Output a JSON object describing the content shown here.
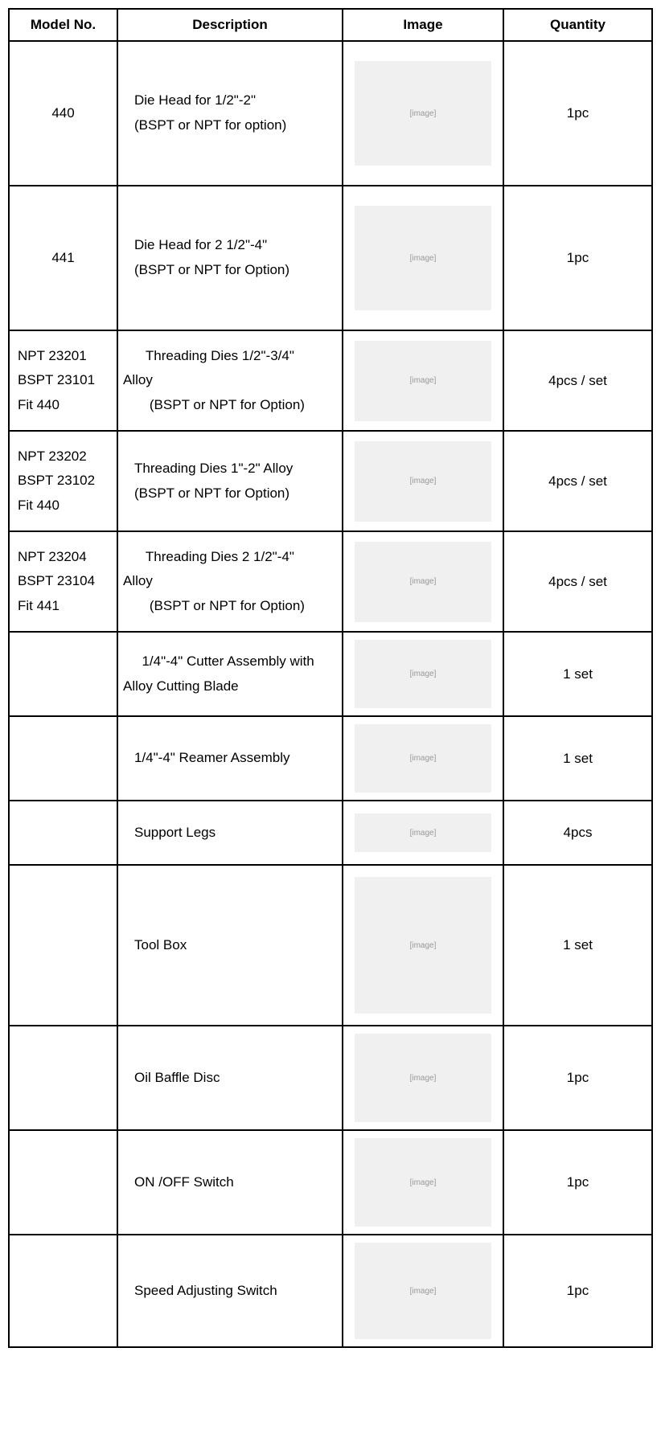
{
  "table": {
    "headers": {
      "model": "Model No.",
      "description": "Description",
      "image": "Image",
      "quantity": "Quantity"
    },
    "rows": [
      {
        "model": "440",
        "model_align": "center",
        "desc_l1": "Die Head for 1/2\"-2\"",
        "desc_l2": "(BSPT or NPT for option)",
        "desc_l3": "",
        "row_class": "row-tall",
        "qty": "1pc"
      },
      {
        "model": "441",
        "model_align": "center",
        "desc_l1": "Die Head for 2 1/2\"-4\"",
        "desc_l2": "(BSPT or NPT for Option)",
        "desc_l3": "",
        "row_class": "row-tall",
        "qty": "1pc"
      },
      {
        "model": "NPT   23201\nBSPT 23101\nFit 440",
        "model_align": "left",
        "desc_l1": "   Threading Dies 1/2\"-3/4\"",
        "desc_l2": "Alloy",
        "desc_l3": "    (BSPT or NPT for Option)",
        "row_class": "row-med",
        "desc_wrap": true,
        "qty": "4pcs / set"
      },
      {
        "model": "NPT   23202\nBSPT 23102\nFit 440",
        "model_align": "left",
        "desc_l1": "Threading Dies 1\"-2\" Alloy",
        "desc_l2": "(BSPT or NPT for Option)",
        "desc_l3": "",
        "row_class": "row-med",
        "qty": "4pcs / set"
      },
      {
        "model": "NPT   23204\nBSPT 23104\nFit 441",
        "model_align": "left",
        "desc_l1": "   Threading Dies 2 1/2\"-4\"",
        "desc_l2": "Alloy",
        "desc_l3": "    (BSPT or NPT for Option)",
        "row_class": "row-med",
        "desc_wrap": true,
        "qty": "4pcs / set"
      },
      {
        "model": "",
        "model_align": "center",
        "desc_l1": "  1/4\"-4\" Cutter Assembly with",
        "desc_l2": "Alloy Cutting Blade",
        "desc_l3": "",
        "row_class": "row-short",
        "desc_wrap": true,
        "qty": "1 set"
      },
      {
        "model": "",
        "model_align": "center",
        "desc_l1": "1/4\"-4\" Reamer Assembly",
        "desc_l2": "",
        "desc_l3": "",
        "row_class": "row-short",
        "qty": "1 set"
      },
      {
        "model": "",
        "model_align": "center",
        "desc_l1": "Support Legs",
        "desc_l2": "",
        "desc_l3": "",
        "row_class": "row-smallest",
        "qty": "4pcs"
      },
      {
        "model": "",
        "model_align": "center",
        "desc_l1": "Tool Box",
        "desc_l2": "",
        "desc_l3": "",
        "row_class": "row-big",
        "qty": "1 set"
      },
      {
        "model": "",
        "model_align": "center",
        "desc_l1": "Oil Baffle Disc",
        "desc_l2": "",
        "desc_l3": "",
        "row_class": "row-130",
        "qty": "1pc"
      },
      {
        "model": "",
        "model_align": "center",
        "desc_l1": "ON /OFF Switch",
        "desc_l2": "",
        "desc_l3": "",
        "row_class": "row-130",
        "qty": "1pc"
      },
      {
        "model": "",
        "model_align": "center",
        "desc_l1": "Speed Adjusting Switch",
        "desc_l2": "",
        "desc_l3": "",
        "row_class": "row-140",
        "qty": "1pc"
      }
    ]
  },
  "styling": {
    "border_color": "#000000",
    "background": "#ffffff",
    "font_family": "Arial, sans-serif",
    "header_fontsize": 17,
    "cell_fontsize": 17,
    "placeholder_bg": "#f0f0f0",
    "placeholder_text_color": "#999999"
  }
}
